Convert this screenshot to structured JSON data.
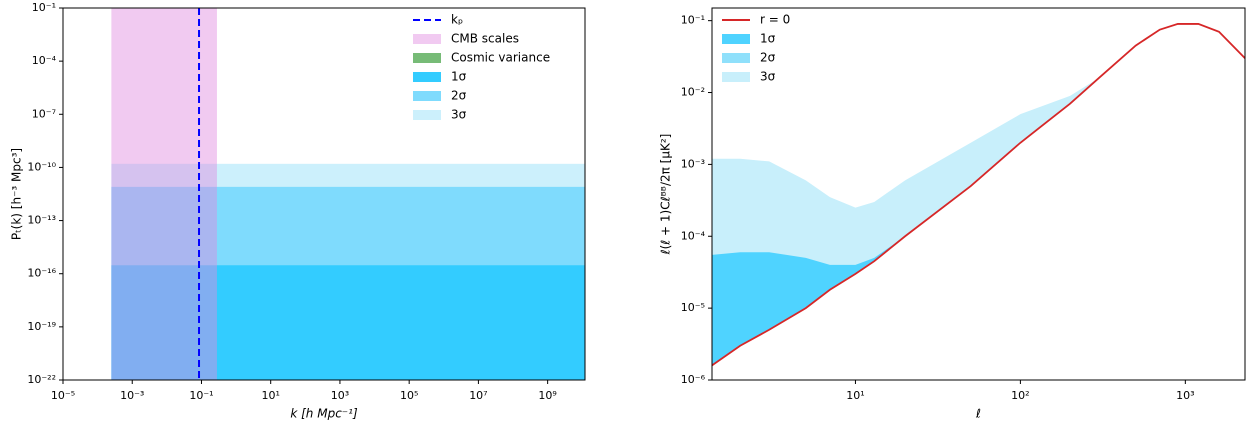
{
  "chart_data": [
    {
      "type": "band",
      "xlabel": "k  [h Mpc⁻¹]",
      "ylabel": "Pₜ(k)  [h⁻³ Mpc³]",
      "log": true,
      "legend": "upper right",
      "xlim": [
        1e-05,
        12000000000.0
      ],
      "ylim": [
        1e-22,
        0.1
      ],
      "xticks": [
        {
          "value": 1e-05,
          "label": "10⁻⁵"
        },
        {
          "value": 0.001,
          "label": "10⁻³"
        },
        {
          "value": 0.1,
          "label": "10⁻¹"
        },
        {
          "value": 10,
          "label": "10¹"
        },
        {
          "value": 1000,
          "label": "10³"
        },
        {
          "value": 100000.0,
          "label": "10⁵"
        },
        {
          "value": 10000000.0,
          "label": "10⁷"
        },
        {
          "value": 1000000000.0,
          "label": "10⁹"
        }
      ],
      "yticks": [
        {
          "value": 1e-22,
          "label": "10⁻²²"
        },
        {
          "value": 1e-19,
          "label": "10⁻¹⁹"
        },
        {
          "value": 1e-16,
          "label": "10⁻¹⁶"
        },
        {
          "value": 1e-13,
          "label": "10⁻¹³"
        },
        {
          "value": 1e-10,
          "label": "10⁻¹⁰"
        },
        {
          "value": 1e-07,
          "label": "10⁻⁷"
        },
        {
          "value": 0.0001,
          "label": "10⁻⁴"
        },
        {
          "value": 0.1,
          "label": "10⁻¹"
        }
      ],
      "series": [
        {
          "name": "kₚ",
          "color": "#0000ff",
          "linestyle": "dashed",
          "x": 0.085
        },
        {
          "name": "CMB scales",
          "color": "#e08ae0",
          "alpha": 0.45,
          "x": [
            0.00025,
            0.28
          ],
          "y": [
            1e-22,
            0.1
          ]
        },
        {
          "name": "Cosmic variance",
          "color": "#77bb77"
        },
        {
          "name": "1σ",
          "color": "#33ccff",
          "x": [
            0.00025,
            12000000000.0
          ],
          "y": [
            1e-22,
            3e-16
          ]
        },
        {
          "name": "2σ",
          "color": "#7fdbfd",
          "x": [
            0.00025,
            12000000000.0
          ],
          "y": [
            1e-22,
            8e-12
          ]
        },
        {
          "name": "3σ",
          "color": "#ccf0fc",
          "x": [
            0.00025,
            12000000000.0
          ],
          "y": [
            1e-22,
            1.6e-10
          ]
        }
      ]
    },
    {
      "type": "line",
      "xlabel": "ℓ",
      "ylabel": "ℓ(ℓ + 1)Cℓᴮᴮ/2π  [μK²]",
      "log": true,
      "legend": "upper left",
      "xlim": [
        1.35,
        2300
      ],
      "ylim": [
        1e-06,
        0.15
      ],
      "xticks": [
        {
          "value": 10,
          "label": "10¹"
        },
        {
          "value": 100,
          "label": "10²"
        },
        {
          "value": 1000,
          "label": "10³"
        }
      ],
      "yticks": [
        {
          "value": 1e-06,
          "label": "10⁻⁶"
        },
        {
          "value": 1e-05,
          "label": "10⁻⁵"
        },
        {
          "value": 0.0001,
          "label": "10⁻⁴"
        },
        {
          "value": 0.001,
          "label": "10⁻³"
        },
        {
          "value": 0.01,
          "label": "10⁻²"
        },
        {
          "value": 0.1,
          "label": "10⁻¹"
        }
      ],
      "x": [
        1.35,
        2,
        3,
        5,
        7,
        10,
        13,
        20,
        50,
        100,
        200,
        300,
        500,
        700,
        900,
        1200,
        1600,
        2300
      ],
      "series": [
        {
          "name": "r = 0",
          "color": "#d62728",
          "values": [
            1.6e-06,
            3e-06,
            5e-06,
            1e-05,
            1.8e-05,
            3e-05,
            4.5e-05,
            0.0001,
            0.0005,
            0.002,
            0.007,
            0.016,
            0.045,
            0.075,
            0.09,
            0.09,
            0.07,
            0.03
          ]
        },
        {
          "name": "1σ",
          "color": "#4fd3ff",
          "fill": true,
          "values": [
            5.5e-05,
            6e-05,
            6e-05,
            5e-05,
            4e-05,
            4e-05,
            5e-05,
            0.0001,
            null,
            null,
            null,
            null,
            null,
            null,
            null,
            null,
            null,
            null
          ]
        },
        {
          "name": "2σ",
          "color": "#8fe0fb",
          "fill": true
        },
        {
          "name": "3σ",
          "color": "#c8effb",
          "fill": true,
          "values": [
            0.0012,
            0.0012,
            0.0011,
            0.0006,
            0.00035,
            0.00025,
            0.0003,
            0.0006,
            0.002,
            0.005,
            0.009,
            0.016,
            null,
            null,
            null,
            null,
            null,
            null
          ]
        }
      ]
    }
  ]
}
